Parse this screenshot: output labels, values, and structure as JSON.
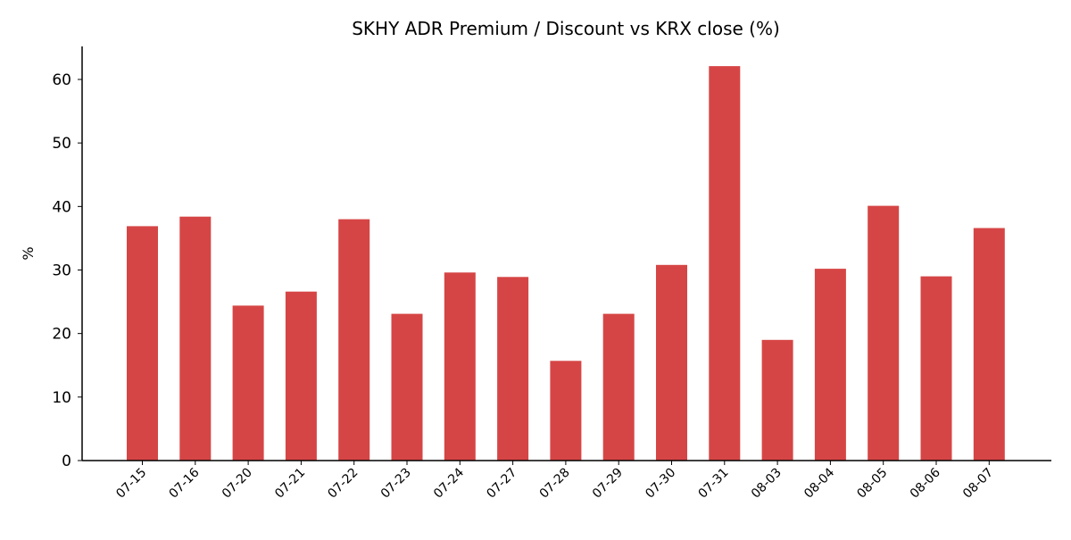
{
  "chart_data": {
    "type": "bar",
    "title": "SKHY ADR Premium / Discount vs KRX close (%)",
    "xlabel": "",
    "ylabel": "%",
    "categories": [
      "07-15",
      "07-16",
      "07-20",
      "07-21",
      "07-22",
      "07-23",
      "07-24",
      "07-27",
      "07-28",
      "07-29",
      "07-30",
      "07-31",
      "08-03",
      "08-04",
      "08-05",
      "08-06",
      "08-07"
    ],
    "values": [
      36.9,
      38.4,
      24.4,
      26.6,
      38.0,
      23.1,
      29.6,
      28.9,
      15.7,
      23.1,
      30.8,
      62.1,
      19.0,
      30.2,
      40.1,
      29.0,
      36.6
    ],
    "ylim": [
      0,
      65
    ],
    "yticks": [
      "0",
      "10",
      "20",
      "30",
      "40",
      "50",
      "60"
    ],
    "grid": false,
    "legend": "none",
    "colors": {
      "bar": "#d64545",
      "axis": "#000000"
    }
  }
}
